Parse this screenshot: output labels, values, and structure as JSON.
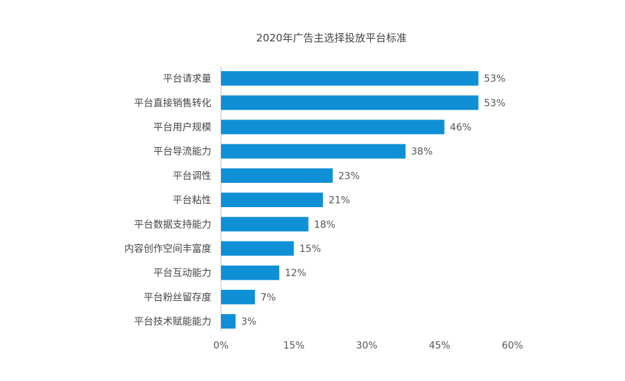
{
  "chart_data": {
    "type": "bar",
    "orientation": "horizontal",
    "title": "2020年广告主选择投放平台标准",
    "categories": [
      "平台请求量",
      "平台直接销售转化",
      "平台用户规模",
      "平台导流能力",
      "平台调性",
      "平台粘性",
      "平台数据支持能力",
      "内容创作空间丰富度",
      "平台互动能力",
      "平台粉丝留存度",
      "平台技术赋能能力"
    ],
    "values": [
      53,
      53,
      46,
      38,
      23,
      21,
      18,
      15,
      12,
      7,
      3
    ],
    "value_labels": [
      "53%",
      "53%",
      "46%",
      "38%",
      "23%",
      "21%",
      "18%",
      "15%",
      "12%",
      "7%",
      "3%"
    ],
    "xlim": [
      0,
      60
    ],
    "x_ticks": [
      0,
      15,
      30,
      45,
      60
    ],
    "x_tick_labels": [
      "0%",
      "15%",
      "30%",
      "45%",
      "60%"
    ],
    "xlabel": "",
    "ylabel": "",
    "grid": false,
    "bar_color": "#0f8fd6"
  }
}
